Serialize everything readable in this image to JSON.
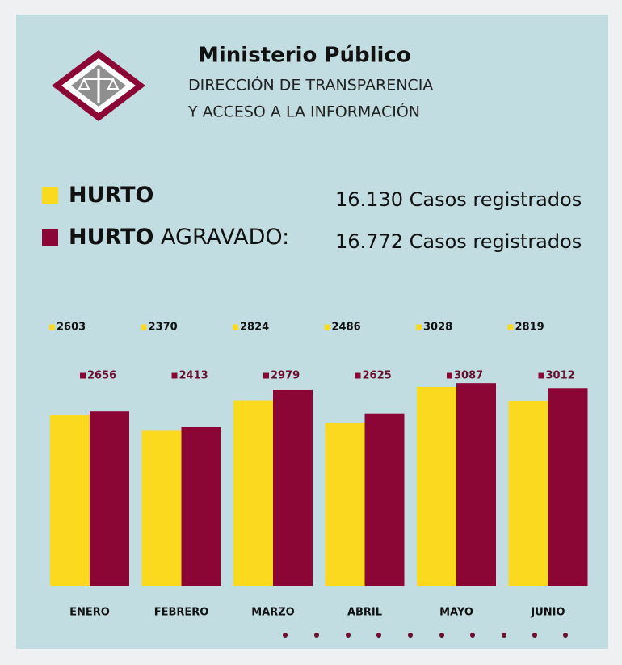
{
  "header": {
    "title": "Ministerio Público",
    "subtitle_lines": [
      "DIRECCIÓN DE TRANSPARENCIA",
      "Y ACCESO A LA INFORMACIÓN"
    ]
  },
  "chart_data": {
    "type": "bar",
    "categories": [
      "ENERO",
      "FEBRERO",
      "MARZO",
      "ABRIL",
      "MAYO",
      "JUNIO"
    ],
    "series": [
      {
        "name": "HURTO",
        "color": "#fbd91f",
        "values": [
          2603,
          2370,
          2824,
          2486,
          3028,
          2819
        ],
        "total": 16130,
        "total_label": "16.130 Casos registrados"
      },
      {
        "name": "HURTO AGRAVADO:",
        "color": "#8b0634",
        "values": [
          2656,
          2413,
          2979,
          2625,
          3087,
          3012
        ],
        "total": 16772,
        "total_label": "16.772 Casos registrados"
      }
    ],
    "ylim": [
      0,
      4000
    ]
  }
}
